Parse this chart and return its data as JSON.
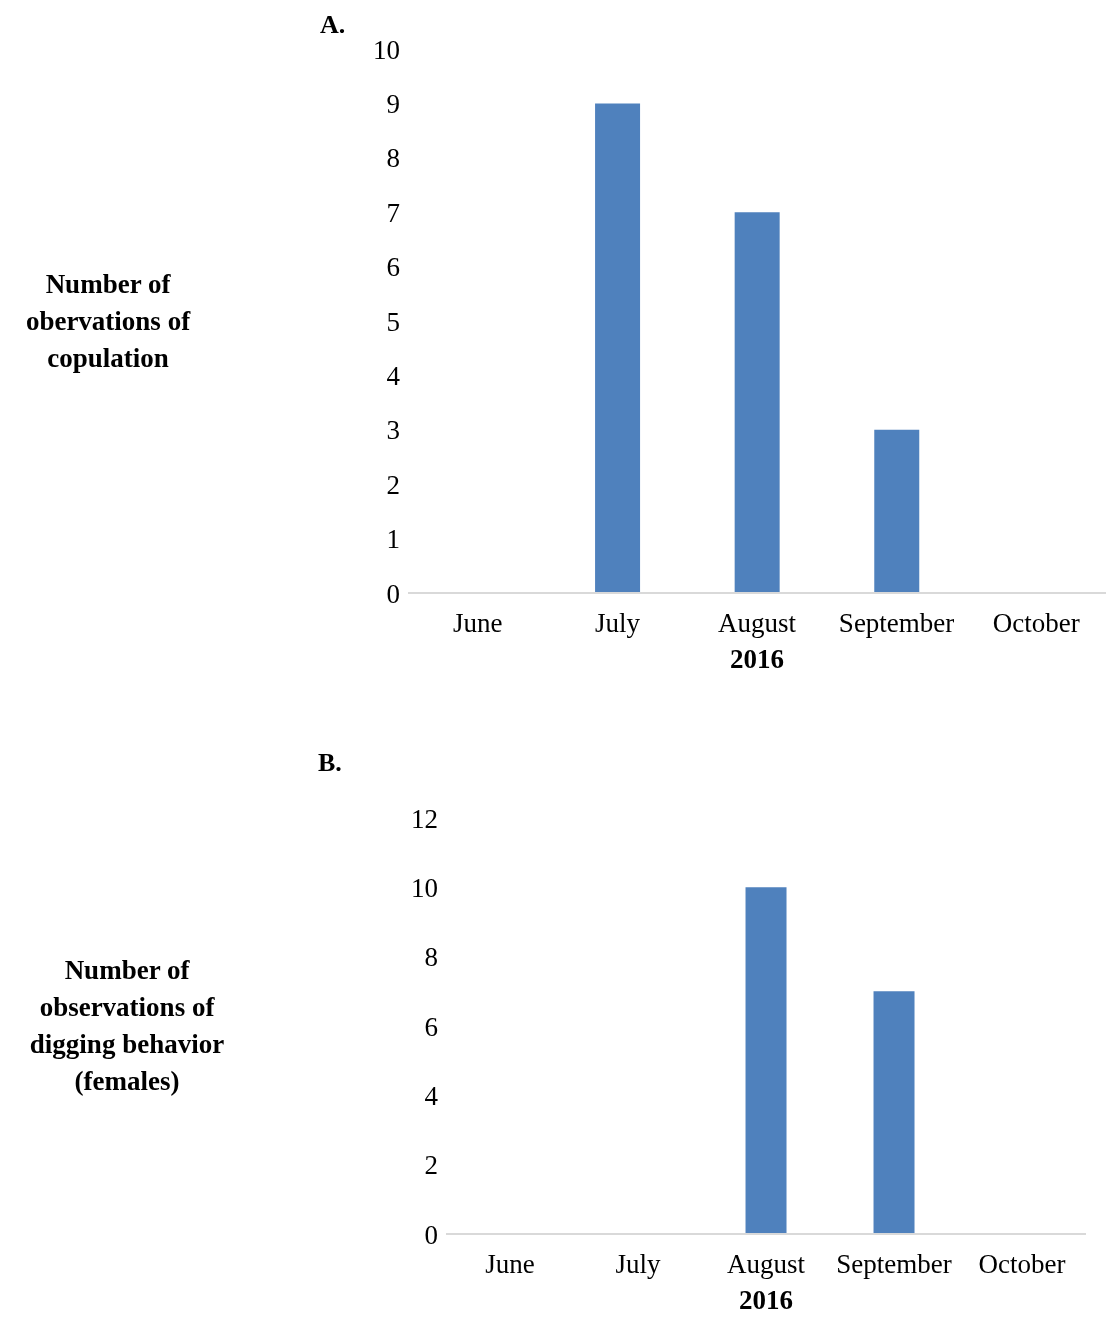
{
  "chart_data": [
    {
      "type": "bar",
      "title": "A.",
      "ylabel": "Number of obervations of copulation",
      "xlabel": "2016",
      "categories": [
        "June",
        "July",
        "August",
        "September",
        "October"
      ],
      "values": [
        0,
        9,
        7,
        3,
        0
      ],
      "color": "#4f81bd",
      "ylim": [
        0,
        10
      ],
      "yticks": [
        0,
        1,
        2,
        3,
        4,
        5,
        6,
        7,
        8,
        9,
        10
      ]
    },
    {
      "type": "bar",
      "title": "B.",
      "ylabel": "Number of observations of digging behavior (females)",
      "xlabel": "2016",
      "categories": [
        "June",
        "July",
        "August",
        "September",
        "October"
      ],
      "values": [
        0,
        0,
        10,
        7,
        0
      ],
      "color": "#4f81bd",
      "ylim": [
        0,
        12
      ],
      "yticks": [
        0,
        2,
        4,
        6,
        8,
        10,
        12
      ]
    }
  ]
}
